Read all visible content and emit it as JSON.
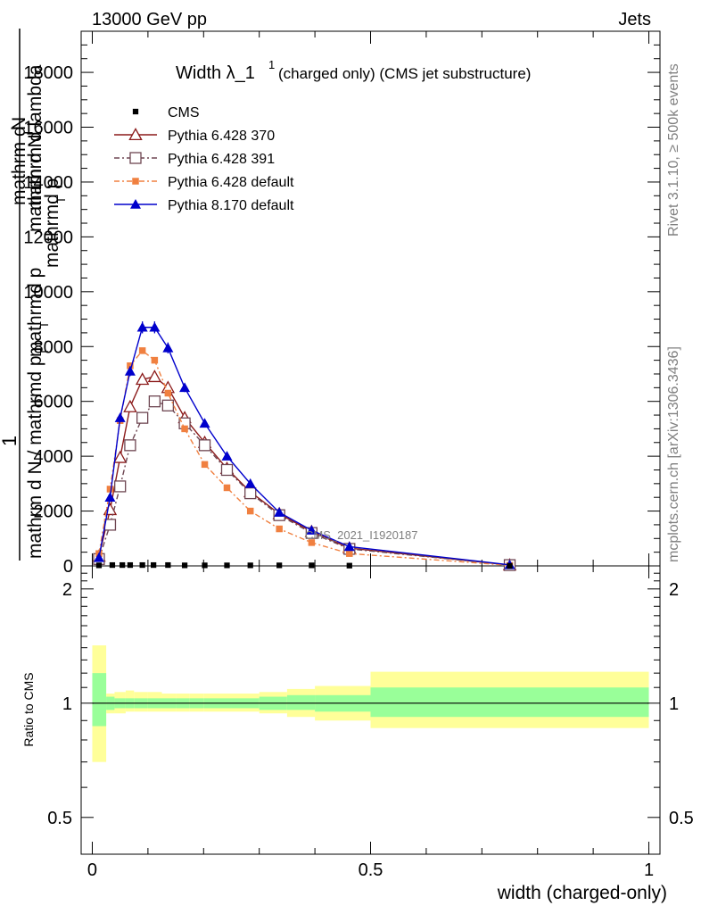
{
  "header": {
    "energy_label": "13000 GeV pp",
    "category_label": "Jets"
  },
  "side": {
    "rivet_label": "Rivet 3.1.10, ≥ 500k events",
    "mcplots_label": "mcplots.cern.ch [arXiv:1306.3436]"
  },
  "chart_data": [
    {
      "type": "line",
      "title": "Width λ_1",
      "title_superscript": "1",
      "subtitle": "(charged only) (CMS jet substructure)",
      "ylabel_top": "1",
      "ylabel_numerator": "mathrm d N",
      "ylabel_denominator": "mathrm d N / mathrmd p",
      "ylabel_sub": "T",
      "ylabel_numerator2": "mathrm d",
      "ylabel_num2_line2": "N",
      "ylabel_den2": "mathrmd p",
      "ylabel_den2_sub": "T",
      "ylabel_den2b": "mathrmd p",
      "ylabel_den2b_sub": "T",
      "ylabel_den2c": "mathrm d lambda",
      "analysis_label": "CMS_2021_I1920187",
      "ylim": [
        0,
        19500
      ],
      "yticks": [
        0,
        2000,
        4000,
        6000,
        8000,
        10000,
        12000,
        14000,
        16000,
        18000
      ],
      "ytick_labels": [
        "0",
        "2000",
        "4000",
        "6000",
        "8000",
        "10000",
        "12000",
        "14000",
        "16000",
        "18000"
      ],
      "legend_position": "top-left",
      "legend": [
        "CMS",
        "Pythia 6.428 370",
        "Pythia 6.428 391",
        "Pythia 6.428 default",
        "Pythia 8.170 default"
      ],
      "series": [
        {
          "name": "CMS",
          "color": "#000000",
          "marker": "square",
          "x": [
            0.012,
            0.036,
            0.054,
            0.068,
            0.09,
            0.11,
            0.136,
            0.166,
            0.202,
            0.242,
            0.284,
            0.336,
            0.394,
            0.462,
            0.75
          ],
          "y": [
            20,
            30,
            30,
            30,
            30,
            30,
            30,
            20,
            20,
            20,
            20,
            20,
            20,
            10,
            0
          ]
        },
        {
          "name": "Pythia 6.428 370",
          "color": "#8b1a1a",
          "marker": "triangle-open",
          "dash": "",
          "x": [
            0.012,
            0.032,
            0.05,
            0.068,
            0.09,
            0.112,
            0.136,
            0.166,
            0.202,
            0.242,
            0.284,
            0.336,
            0.394,
            0.462,
            0.75
          ],
          "y": [
            350,
            2050,
            3950,
            5800,
            6800,
            6900,
            6500,
            5400,
            4500,
            3550,
            2700,
            1900,
            1250,
            650,
            30
          ]
        },
        {
          "name": "Pythia 6.428 391",
          "color": "#6e4652",
          "marker": "square-open",
          "dash": "6,3,2,3",
          "x": [
            0.012,
            0.032,
            0.05,
            0.068,
            0.09,
            0.112,
            0.136,
            0.166,
            0.202,
            0.242,
            0.284,
            0.336,
            0.394,
            0.462,
            0.75
          ],
          "y": [
            250,
            1500,
            2900,
            4400,
            5400,
            6000,
            5850,
            5200,
            4400,
            3500,
            2650,
            1850,
            1200,
            620,
            30
          ]
        },
        {
          "name": "Pythia 6.428 default",
          "color": "#f08040",
          "marker": "square",
          "dash": "6,3,2,3",
          "x": [
            0.012,
            0.032,
            0.05,
            0.068,
            0.09,
            0.112,
            0.136,
            0.166,
            0.202,
            0.242,
            0.284,
            0.336,
            0.394,
            0.462,
            0.75
          ],
          "y": [
            450,
            2800,
            5300,
            7300,
            7850,
            7500,
            6300,
            5000,
            3700,
            2850,
            2000,
            1350,
            850,
            450,
            20
          ]
        },
        {
          "name": "Pythia 8.170 default",
          "color": "#0000cc",
          "marker": "triangle",
          "dash": "",
          "x": [
            0.012,
            0.032,
            0.05,
            0.068,
            0.09,
            0.112,
            0.136,
            0.166,
            0.202,
            0.242,
            0.284,
            0.336,
            0.394,
            0.462,
            0.75
          ],
          "y": [
            300,
            2500,
            5400,
            7100,
            8700,
            8700,
            7950,
            6500,
            5200,
            4000,
            3000,
            1950,
            1300,
            700,
            40
          ]
        }
      ]
    },
    {
      "type": "area",
      "ylabel": "Ratio to CMS",
      "xlabel": "width (charged-only)",
      "xlim": [
        -0.02,
        1.02
      ],
      "ylim": [
        0.4,
        2.3
      ],
      "xticks": [
        0,
        0.5,
        1
      ],
      "xtick_labels": [
        "0",
        "0.5",
        "1"
      ],
      "yticks": [
        0.5,
        1,
        2
      ],
      "ytick_labels": [
        "0.5",
        "1",
        "2"
      ],
      "bins": [
        0,
        0.025,
        0.04,
        0.06,
        0.075,
        0.1,
        0.125,
        0.15,
        0.175,
        0.2,
        0.25,
        0.3,
        0.35,
        0.4,
        0.5,
        1.0
      ],
      "band_inner_low": [
        0.87,
        0.96,
        0.97,
        0.97,
        0.97,
        0.97,
        0.97,
        0.97,
        0.97,
        0.97,
        0.97,
        0.96,
        0.96,
        0.95,
        0.92
      ],
      "band_inner_high": [
        1.2,
        1.04,
        1.03,
        1.03,
        1.03,
        1.03,
        1.03,
        1.03,
        1.03,
        1.03,
        1.03,
        1.04,
        1.05,
        1.05,
        1.1
      ],
      "band_outer_low": [
        0.7,
        0.94,
        0.94,
        0.95,
        0.95,
        0.95,
        0.95,
        0.95,
        0.95,
        0.95,
        0.95,
        0.94,
        0.92,
        0.9,
        0.86
      ],
      "band_outer_high": [
        1.42,
        1.06,
        1.07,
        1.08,
        1.07,
        1.07,
        1.06,
        1.06,
        1.06,
        1.06,
        1.06,
        1.07,
        1.09,
        1.11,
        1.21
      ],
      "inner_color": "#99ff99",
      "outer_color": "#ffff99"
    }
  ]
}
